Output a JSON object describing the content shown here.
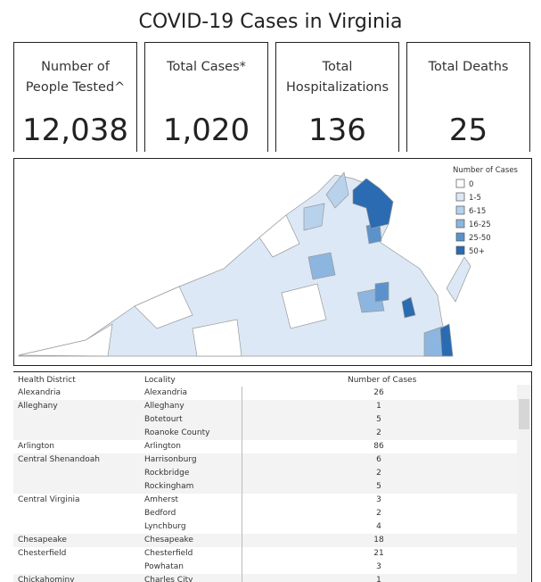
{
  "title": "COVID-19 Cases in Virginia",
  "kpis": [
    {
      "label": "Number of People Tested^",
      "value": "12,038"
    },
    {
      "label": "Total Cases*",
      "value": "1,020"
    },
    {
      "label": "Total Hospitalizations",
      "value": "136"
    },
    {
      "label": "Total Deaths",
      "value": "25"
    }
  ],
  "map_legend": {
    "title": "Number of Cases",
    "items": [
      {
        "label": "0",
        "color": "#ffffff"
      },
      {
        "label": "1-5",
        "color": "#dce8f5"
      },
      {
        "label": "6-15",
        "color": "#b8d2ec"
      },
      {
        "label": "16-25",
        "color": "#8cb6df"
      },
      {
        "label": "25-50",
        "color": "#5b92cc"
      },
      {
        "label": "50+",
        "color": "#2a6bb1"
      }
    ]
  },
  "table": {
    "headers": [
      "Health District",
      "Locality",
      "Number of Cases"
    ],
    "districts": [
      {
        "name": "Alexandria",
        "localities": [
          {
            "name": "Alexandria",
            "cases": 26
          }
        ]
      },
      {
        "name": "Alleghany",
        "localities": [
          {
            "name": "Alleghany",
            "cases": 1
          },
          {
            "name": "Botetourt",
            "cases": 5
          },
          {
            "name": "Roanoke County",
            "cases": 2
          }
        ]
      },
      {
        "name": "Arlington",
        "localities": [
          {
            "name": "Arlington",
            "cases": 86
          }
        ]
      },
      {
        "name": "Central Shenandoah",
        "localities": [
          {
            "name": "Harrisonburg",
            "cases": 6
          },
          {
            "name": "Rockbridge",
            "cases": 2
          },
          {
            "name": "Rockingham",
            "cases": 5
          }
        ]
      },
      {
        "name": "Central Virginia",
        "localities": [
          {
            "name": "Amherst",
            "cases": 3
          },
          {
            "name": "Bedford",
            "cases": 2
          },
          {
            "name": "Lynchburg",
            "cases": 4
          }
        ]
      },
      {
        "name": "Chesapeake",
        "localities": [
          {
            "name": "Chesapeake",
            "cases": 18
          }
        ]
      },
      {
        "name": "Chesterfield",
        "localities": [
          {
            "name": "Chesterfield",
            "cases": 21
          },
          {
            "name": "Powhatan",
            "cases": 3
          }
        ]
      },
      {
        "name": "Chickahominy",
        "localities": [
          {
            "name": "Charles City",
            "cases": 1
          }
        ]
      }
    ]
  }
}
